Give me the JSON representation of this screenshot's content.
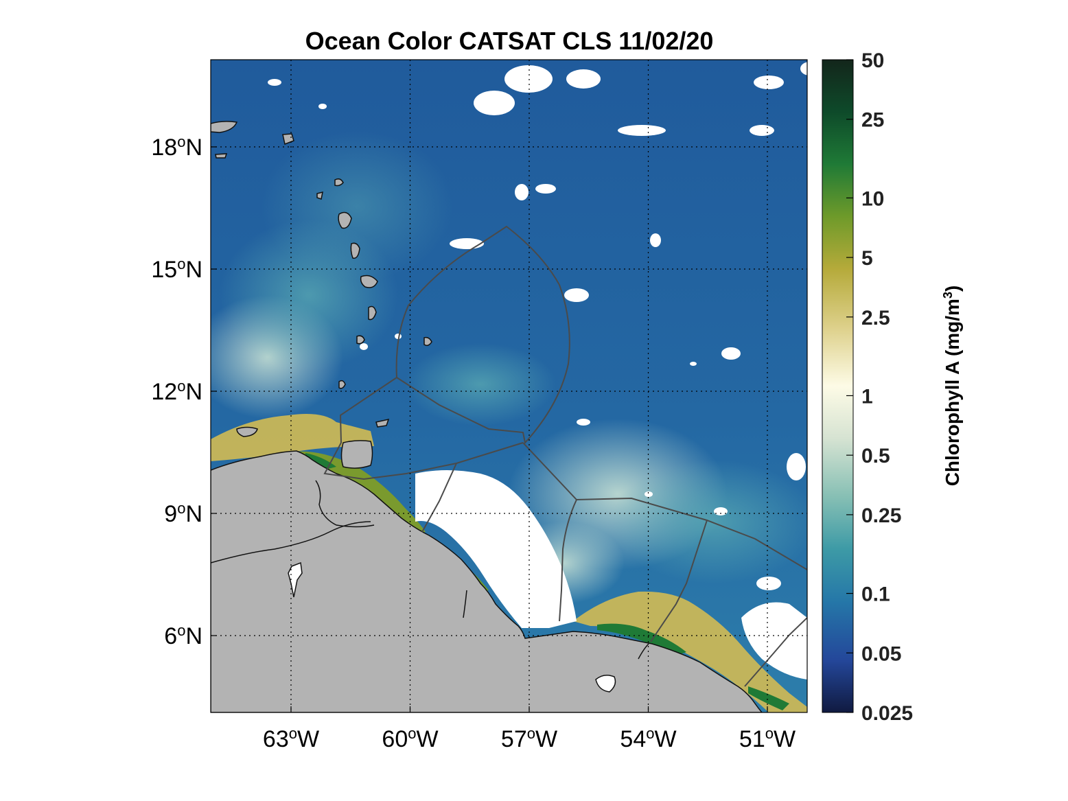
{
  "title": "Ocean Color CATSAT CLS 11/02/20",
  "map": {
    "x_ticks": [
      {
        "lon": -63,
        "deg": "63",
        "hemi": "W"
      },
      {
        "lon": -60,
        "deg": "60",
        "hemi": "W"
      },
      {
        "lon": -57,
        "deg": "57",
        "hemi": "W"
      },
      {
        "lon": -54,
        "deg": "54",
        "hemi": "W"
      },
      {
        "lon": -51,
        "deg": "51",
        "hemi": "W"
      }
    ],
    "y_ticks": [
      {
        "lat": 18,
        "deg": "18",
        "hemi": "N"
      },
      {
        "lat": 15,
        "deg": "15",
        "hemi": "N"
      },
      {
        "lat": 12,
        "deg": "12",
        "hemi": "N"
      },
      {
        "lat": 9,
        "deg": "9",
        "hemi": "N"
      },
      {
        "lat": 6,
        "deg": "6",
        "hemi": "N"
      }
    ],
    "degree_symbol": "o",
    "grid": "dotted",
    "colors": {
      "land": "#b3b3b3",
      "ocean_deep": "#1f5f9e",
      "ocean_mid": "#2f7fae",
      "cloud": "#ffffff",
      "boundary": "#4a4a4a"
    }
  },
  "colorbar": {
    "label_main": "Chlorophyll A (mg/m",
    "label_sup": "3",
    "label_close": ")",
    "scale": "log",
    "ticks": [
      "50",
      "25",
      "10",
      "5",
      "2.5",
      "1",
      "0.5",
      "0.25",
      "0.1",
      "0.05",
      "0.025"
    ]
  }
}
